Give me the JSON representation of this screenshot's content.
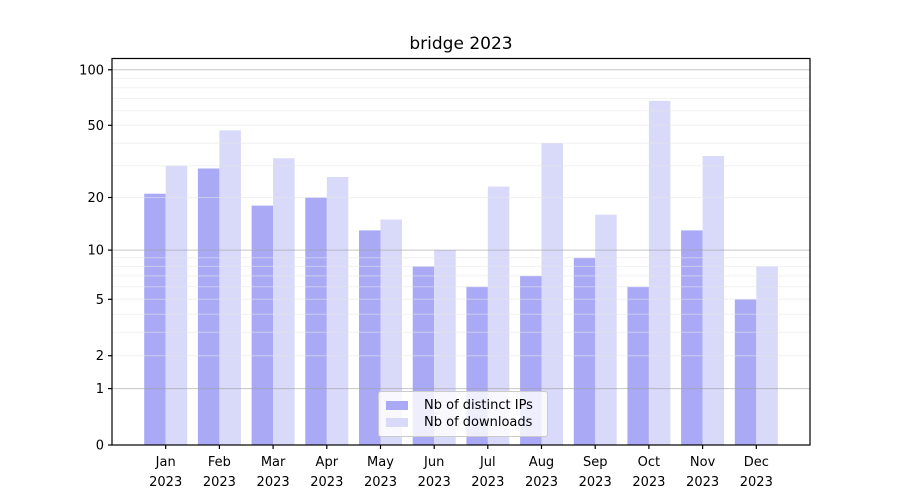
{
  "chart_data": {
    "type": "bar",
    "title": "bridge 2023",
    "categories": [
      "Jan 2023",
      "Feb 2023",
      "Mar 2023",
      "Apr 2023",
      "May 2023",
      "Jun 2023",
      "Jul 2023",
      "Aug 2023",
      "Sep 2023",
      "Oct 2023",
      "Nov 2023",
      "Dec 2023"
    ],
    "series": [
      {
        "name": "Nb of distinct IPs",
        "color": "#a9a9f6",
        "values": [
          21,
          29,
          18,
          20,
          13,
          8,
          6,
          7,
          9,
          6,
          13,
          5
        ]
      },
      {
        "name": "Nb of downloads",
        "color": "#d9d9f9",
        "values": [
          30,
          47,
          33,
          26,
          15,
          10,
          23,
          40,
          16,
          68,
          34,
          8
        ]
      }
    ],
    "xlabel": "",
    "ylabel": "",
    "yscale": "log1p",
    "y_tick_values": [
      0,
      1,
      2,
      5,
      10,
      20,
      50,
      100
    ],
    "gridlines_dark": [
      1,
      10,
      100
    ],
    "gridlines_light": [
      2,
      3,
      4,
      5,
      6,
      7,
      8,
      9,
      20,
      30,
      40,
      50,
      60,
      70,
      80,
      90
    ],
    "ylim": [
      0,
      116
    ],
    "grid": true,
    "legend_position": "lower center",
    "axis_color": "#000000",
    "grid_major_color": "#a0a0a0",
    "grid_minor_color": "#e6e6e6"
  }
}
